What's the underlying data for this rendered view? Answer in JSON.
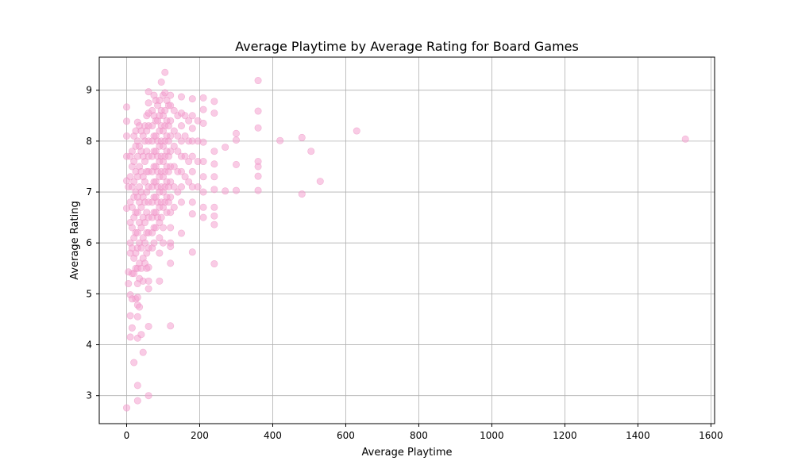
{
  "chart_data": {
    "type": "scatter",
    "title": "Average Playtime by Average Rating for Board Games",
    "xlabel": "Average Playtime",
    "ylabel": "Average Rating",
    "xlim": [
      -75,
      1610
    ],
    "ylim": [
      2.45,
      9.65
    ],
    "xticks": [
      0,
      200,
      400,
      600,
      800,
      1000,
      1200,
      1400,
      1600
    ],
    "yticks": [
      3,
      4,
      5,
      6,
      7,
      8,
      9
    ],
    "grid": true,
    "marker_color": "#f4a0cf",
    "marker_edge_color": "#e98bbd",
    "marker_opacity": 0.55,
    "series": [
      {
        "points": [
          [
            0,
            8.67
          ],
          [
            0,
            8.39
          ],
          [
            0,
            8.1
          ],
          [
            0,
            7.7
          ],
          [
            0,
            7.22
          ],
          [
            0,
            6.68
          ],
          [
            0,
            2.76
          ],
          [
            5,
            7.1
          ],
          [
            5,
            5.43
          ],
          [
            5,
            5.2
          ],
          [
            10,
            7.7
          ],
          [
            10,
            7.3
          ],
          [
            10,
            6.8
          ],
          [
            10,
            6.4
          ],
          [
            10,
            6.0
          ],
          [
            10,
            5.8
          ],
          [
            10,
            4.98
          ],
          [
            10,
            4.57
          ],
          [
            10,
            4.15
          ],
          [
            15,
            7.8
          ],
          [
            15,
            7.5
          ],
          [
            15,
            7.1
          ],
          [
            15,
            6.7
          ],
          [
            15,
            6.3
          ],
          [
            15,
            5.9
          ],
          [
            15,
            5.4
          ],
          [
            15,
            4.9
          ],
          [
            15,
            4.33
          ],
          [
            20,
            3.65
          ],
          [
            20,
            8.1
          ],
          [
            20,
            7.6
          ],
          [
            20,
            7.2
          ],
          [
            20,
            6.9
          ],
          [
            20,
            6.5
          ],
          [
            20,
            6.1
          ],
          [
            20,
            5.7
          ],
          [
            20,
            5.4
          ],
          [
            25,
            8.2
          ],
          [
            25,
            7.9
          ],
          [
            25,
            7.4
          ],
          [
            25,
            7.0
          ],
          [
            25,
            6.6
          ],
          [
            25,
            6.2
          ],
          [
            25,
            5.8
          ],
          [
            25,
            5.5
          ],
          [
            25,
            4.9
          ],
          [
            30,
            8.37
          ],
          [
            30,
            8.0
          ],
          [
            30,
            7.7
          ],
          [
            30,
            7.3
          ],
          [
            30,
            6.9
          ],
          [
            30,
            6.6
          ],
          [
            30,
            6.2
          ],
          [
            30,
            5.9
          ],
          [
            30,
            5.5
          ],
          [
            30,
            5.2
          ],
          [
            30,
            4.93
          ],
          [
            30,
            4.78
          ],
          [
            30,
            4.55
          ],
          [
            30,
            4.13
          ],
          [
            30,
            3.2
          ],
          [
            30,
            2.9
          ],
          [
            35,
            8.3
          ],
          [
            35,
            7.9
          ],
          [
            35,
            7.5
          ],
          [
            35,
            7.1
          ],
          [
            35,
            6.8
          ],
          [
            35,
            6.4
          ],
          [
            35,
            6.0
          ],
          [
            35,
            5.6
          ],
          [
            35,
            5.3
          ],
          [
            35,
            4.74
          ],
          [
            40,
            8.2
          ],
          [
            40,
            7.8
          ],
          [
            40,
            7.4
          ],
          [
            40,
            7.0
          ],
          [
            40,
            6.7
          ],
          [
            40,
            6.3
          ],
          [
            40,
            5.9
          ],
          [
            40,
            5.5
          ],
          [
            40,
            4.2
          ],
          [
            45,
            8.1
          ],
          [
            45,
            7.7
          ],
          [
            45,
            7.3
          ],
          [
            45,
            6.9
          ],
          [
            45,
            6.5
          ],
          [
            45,
            6.1
          ],
          [
            45,
            5.7
          ],
          [
            45,
            5.25
          ],
          [
            45,
            3.85
          ],
          [
            50,
            8.3
          ],
          [
            50,
            8.0
          ],
          [
            50,
            7.6
          ],
          [
            50,
            7.2
          ],
          [
            50,
            6.8
          ],
          [
            50,
            6.4
          ],
          [
            50,
            6.0
          ],
          [
            50,
            5.6
          ],
          [
            55,
            8.5
          ],
          [
            55,
            8.2
          ],
          [
            55,
            7.8
          ],
          [
            55,
            7.4
          ],
          [
            55,
            7.0
          ],
          [
            55,
            6.6
          ],
          [
            55,
            6.2
          ],
          [
            55,
            5.8
          ],
          [
            55,
            5.5
          ],
          [
            60,
            8.97
          ],
          [
            60,
            8.75
          ],
          [
            60,
            8.55
          ],
          [
            60,
            8.3
          ],
          [
            60,
            8.0
          ],
          [
            60,
            7.7
          ],
          [
            60,
            7.4
          ],
          [
            60,
            7.1
          ],
          [
            60,
            6.8
          ],
          [
            60,
            6.5
          ],
          [
            60,
            6.2
          ],
          [
            60,
            5.9
          ],
          [
            60,
            5.52
          ],
          [
            60,
            5.25
          ],
          [
            60,
            5.1
          ],
          [
            60,
            4.36
          ],
          [
            60,
            3.0
          ],
          [
            70,
            8.6
          ],
          [
            70,
            8.3
          ],
          [
            70,
            8.0
          ],
          [
            70,
            7.7
          ],
          [
            70,
            7.4
          ],
          [
            70,
            7.1
          ],
          [
            70,
            6.8
          ],
          [
            70,
            6.5
          ],
          [
            70,
            6.2
          ],
          [
            70,
            5.9
          ],
          [
            75,
            8.9
          ],
          [
            75,
            8.5
          ],
          [
            75,
            8.1
          ],
          [
            75,
            7.8
          ],
          [
            75,
            7.5
          ],
          [
            75,
            7.2
          ],
          [
            75,
            6.9
          ],
          [
            75,
            6.6
          ],
          [
            75,
            6.3
          ],
          [
            75,
            6.0
          ],
          [
            80,
            8.8
          ],
          [
            80,
            8.4
          ],
          [
            80,
            8.1
          ],
          [
            80,
            7.8
          ],
          [
            80,
            7.5
          ],
          [
            80,
            7.2
          ],
          [
            80,
            6.9
          ],
          [
            80,
            6.6
          ],
          [
            80,
            6.3
          ],
          [
            85,
            8.7
          ],
          [
            85,
            8.4
          ],
          [
            85,
            8.0
          ],
          [
            85,
            7.7
          ],
          [
            85,
            7.4
          ],
          [
            85,
            7.1
          ],
          [
            85,
            6.8
          ],
          [
            85,
            6.5
          ],
          [
            90,
            8.8
          ],
          [
            90,
            8.5
          ],
          [
            90,
            8.2
          ],
          [
            90,
            7.9
          ],
          [
            90,
            7.6
          ],
          [
            90,
            7.3
          ],
          [
            90,
            7.0
          ],
          [
            90,
            6.7
          ],
          [
            90,
            6.4
          ],
          [
            90,
            6.1
          ],
          [
            90,
            5.8
          ],
          [
            90,
            5.25
          ],
          [
            95,
            9.16
          ],
          [
            95,
            8.6
          ],
          [
            95,
            8.3
          ],
          [
            95,
            8.0
          ],
          [
            95,
            7.7
          ],
          [
            95,
            7.4
          ],
          [
            95,
            7.1
          ],
          [
            95,
            6.8
          ],
          [
            95,
            6.5
          ],
          [
            100,
            8.9
          ],
          [
            100,
            8.5
          ],
          [
            100,
            8.2
          ],
          [
            100,
            7.9
          ],
          [
            100,
            7.6
          ],
          [
            100,
            7.3
          ],
          [
            100,
            7.0
          ],
          [
            100,
            6.7
          ],
          [
            100,
            6.3
          ],
          [
            100,
            6.0
          ],
          [
            105,
            9.35
          ],
          [
            105,
            8.95
          ],
          [
            105,
            8.6
          ],
          [
            105,
            8.3
          ],
          [
            105,
            8.0
          ],
          [
            105,
            7.7
          ],
          [
            105,
            7.4
          ],
          [
            105,
            7.1
          ],
          [
            105,
            6.8
          ],
          [
            110,
            8.8
          ],
          [
            110,
            8.4
          ],
          [
            110,
            8.1
          ],
          [
            110,
            7.8
          ],
          [
            110,
            7.5
          ],
          [
            110,
            7.2
          ],
          [
            110,
            6.9
          ],
          [
            110,
            6.6
          ],
          [
            115,
            8.7
          ],
          [
            115,
            8.3
          ],
          [
            115,
            8.0
          ],
          [
            115,
            7.7
          ],
          [
            115,
            7.4
          ],
          [
            115,
            7.1
          ],
          [
            115,
            6.8
          ],
          [
            120,
            8.9
          ],
          [
            120,
            8.7
          ],
          [
            120,
            8.4
          ],
          [
            120,
            8.1
          ],
          [
            120,
            7.8
          ],
          [
            120,
            7.5
          ],
          [
            120,
            7.2
          ],
          [
            120,
            6.9
          ],
          [
            120,
            6.6
          ],
          [
            120,
            6.3
          ],
          [
            120,
            6.0
          ],
          [
            120,
            5.93
          ],
          [
            120,
            5.6
          ],
          [
            120,
            4.37
          ],
          [
            130,
            8.6
          ],
          [
            130,
            8.2
          ],
          [
            130,
            7.9
          ],
          [
            130,
            7.5
          ],
          [
            130,
            7.1
          ],
          [
            130,
            6.7
          ],
          [
            140,
            8.5
          ],
          [
            140,
            8.1
          ],
          [
            140,
            7.8
          ],
          [
            140,
            7.4
          ],
          [
            140,
            7.0
          ],
          [
            150,
            8.87
          ],
          [
            150,
            8.55
          ],
          [
            150,
            8.3
          ],
          [
            150,
            8.0
          ],
          [
            150,
            7.7
          ],
          [
            150,
            7.4
          ],
          [
            150,
            7.1
          ],
          [
            150,
            6.8
          ],
          [
            150,
            6.19
          ],
          [
            160,
            8.5
          ],
          [
            160,
            8.1
          ],
          [
            160,
            7.7
          ],
          [
            160,
            7.3
          ],
          [
            170,
            8.4
          ],
          [
            170,
            8.0
          ],
          [
            170,
            7.6
          ],
          [
            170,
            7.2
          ],
          [
            180,
            8.83
          ],
          [
            180,
            8.5
          ],
          [
            180,
            8.25
          ],
          [
            180,
            8.0
          ],
          [
            180,
            7.7
          ],
          [
            180,
            7.4
          ],
          [
            180,
            7.1
          ],
          [
            180,
            6.8
          ],
          [
            180,
            6.57
          ],
          [
            180,
            5.82
          ],
          [
            195,
            8.4
          ],
          [
            195,
            8.0
          ],
          [
            195,
            7.6
          ],
          [
            195,
            7.1
          ],
          [
            210,
            8.85
          ],
          [
            210,
            8.62
          ],
          [
            210,
            8.35
          ],
          [
            210,
            7.98
          ],
          [
            210,
            7.6
          ],
          [
            210,
            7.3
          ],
          [
            210,
            7.0
          ],
          [
            210,
            6.7
          ],
          [
            210,
            6.5
          ],
          [
            240,
            8.78
          ],
          [
            240,
            8.55
          ],
          [
            240,
            7.8
          ],
          [
            240,
            7.55
          ],
          [
            240,
            7.3
          ],
          [
            240,
            7.05
          ],
          [
            240,
            6.7
          ],
          [
            240,
            6.53
          ],
          [
            240,
            6.36
          ],
          [
            240,
            5.59
          ],
          [
            270,
            7.88
          ],
          [
            270,
            7.02
          ],
          [
            300,
            8.15
          ],
          [
            300,
            8.02
          ],
          [
            300,
            7.54
          ],
          [
            300,
            7.03
          ],
          [
            360,
            9.19
          ],
          [
            360,
            8.59
          ],
          [
            360,
            8.26
          ],
          [
            360,
            7.6
          ],
          [
            360,
            7.5
          ],
          [
            360,
            7.31
          ],
          [
            360,
            7.03
          ],
          [
            420,
            8.01
          ],
          [
            480,
            8.07
          ],
          [
            480,
            6.96
          ],
          [
            505,
            7.8
          ],
          [
            530,
            7.21
          ],
          [
            630,
            8.2
          ],
          [
            1530,
            8.04
          ]
        ]
      }
    ]
  }
}
